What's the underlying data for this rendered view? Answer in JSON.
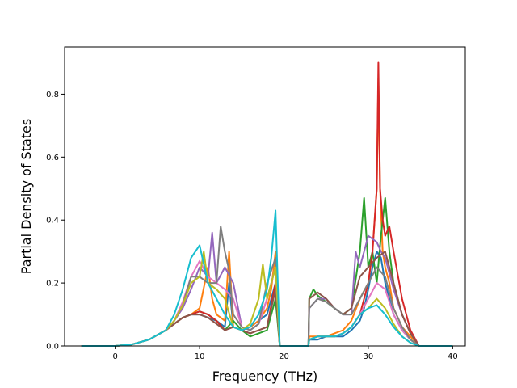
{
  "chart_data": {
    "type": "line",
    "title": "",
    "xlabel": "Frequency (THz)",
    "ylabel": "Partial Density of States",
    "xlim": [
      -6,
      41.5
    ],
    "ylim": [
      0,
      0.95
    ],
    "xticks": [
      0,
      10,
      20,
      30,
      40
    ],
    "yticks": [
      0.0,
      0.2,
      0.4,
      0.6,
      0.8
    ],
    "xtick_labels": [
      "0",
      "10",
      "20",
      "30",
      "40"
    ],
    "ytick_labels": [
      "0.0",
      "0.2",
      "0.4",
      "0.6",
      "0.8"
    ],
    "grid": false,
    "legend": "none",
    "series": [
      {
        "color": "#1f77b4",
        "x": [
          -4,
          0,
          2,
          4,
          6,
          7,
          8,
          9,
          10,
          11,
          12,
          13,
          13.5,
          14,
          15,
          16,
          17,
          18,
          18.5,
          19,
          19.5,
          22.9,
          23,
          24,
          25,
          26,
          27,
          28,
          29,
          29.5,
          30,
          30.5,
          31,
          31.5,
          32,
          32.5,
          33,
          34,
          35,
          36,
          40
        ],
        "y": [
          0,
          0,
          0.005,
          0.02,
          0.05,
          0.07,
          0.09,
          0.1,
          0.1,
          0.09,
          0.08,
          0.06,
          0.2,
          0.06,
          0.05,
          0.06,
          0.08,
          0.1,
          0.15,
          0.2,
          0,
          0,
          0.02,
          0.02,
          0.03,
          0.03,
          0.03,
          0.05,
          0.08,
          0.12,
          0.18,
          0.25,
          0.3,
          0.28,
          0.2,
          0.15,
          0.1,
          0.05,
          0.02,
          0,
          0
        ]
      },
      {
        "color": "#ff7f0e",
        "x": [
          -4,
          0,
          2,
          4,
          6,
          7,
          8,
          9,
          10,
          11,
          11.5,
          12,
          13,
          13.5,
          14,
          15,
          16,
          17,
          18,
          18.5,
          19,
          19.5,
          22.9,
          23,
          24,
          25,
          26,
          27,
          28,
          29,
          30,
          30.5,
          31,
          31.2,
          31.4,
          31.7,
          32,
          32.5,
          33,
          34,
          35,
          36,
          40
        ],
        "y": [
          0,
          0,
          0.005,
          0.02,
          0.05,
          0.07,
          0.09,
          0.1,
          0.12,
          0.25,
          0.15,
          0.1,
          0.08,
          0.3,
          0.06,
          0.05,
          0.06,
          0.08,
          0.12,
          0.18,
          0.3,
          0,
          0,
          0.03,
          0.03,
          0.03,
          0.04,
          0.05,
          0.08,
          0.15,
          0.2,
          0.3,
          0.5,
          0.85,
          0.5,
          0.3,
          0.25,
          0.2,
          0.12,
          0.06,
          0.03,
          0,
          0
        ]
      },
      {
        "color": "#2ca02c",
        "x": [
          -4,
          0,
          2,
          4,
          6,
          7,
          8,
          9,
          10,
          11,
          12,
          13,
          14,
          15,
          16,
          17,
          18,
          19,
          19.5,
          22.9,
          23,
          23.5,
          24,
          25,
          26,
          27,
          28,
          29,
          29.5,
          30,
          30.5,
          31,
          31.5,
          32,
          32.5,
          33,
          34,
          35,
          36,
          40
        ],
        "y": [
          0,
          0,
          0.005,
          0.02,
          0.05,
          0.07,
          0.09,
          0.1,
          0.11,
          0.1,
          0.08,
          0.05,
          0.08,
          0.05,
          0.03,
          0.04,
          0.05,
          0.15,
          0,
          0,
          0.15,
          0.18,
          0.16,
          0.14,
          0.12,
          0.1,
          0.12,
          0.3,
          0.47,
          0.25,
          0.3,
          0.2,
          0.35,
          0.47,
          0.3,
          0.2,
          0.1,
          0.04,
          0,
          0
        ]
      },
      {
        "color": "#d62728",
        "x": [
          -4,
          0,
          2,
          4,
          6,
          7,
          8,
          9,
          10,
          11,
          12,
          13,
          14,
          15,
          16,
          17,
          18,
          19,
          19.5,
          22.9,
          23,
          24,
          25,
          26,
          27,
          28,
          29,
          30,
          30.5,
          31,
          31.2,
          31.4,
          31.7,
          32,
          32.5,
          33,
          34,
          35,
          36,
          40
        ],
        "y": [
          0,
          0,
          0.005,
          0.02,
          0.05,
          0.07,
          0.09,
          0.1,
          0.11,
          0.1,
          0.08,
          0.05,
          0.06,
          0.05,
          0.04,
          0.05,
          0.06,
          0.2,
          0,
          0,
          0.02,
          0.03,
          0.03,
          0.03,
          0.04,
          0.06,
          0.1,
          0.2,
          0.3,
          0.5,
          0.9,
          0.5,
          0.4,
          0.35,
          0.38,
          0.3,
          0.15,
          0.05,
          0,
          0
        ]
      },
      {
        "color": "#9467bd",
        "x": [
          -4,
          0,
          2,
          4,
          6,
          7,
          8,
          9,
          10,
          11,
          11.5,
          12,
          13,
          14,
          15,
          16,
          17,
          18,
          19,
          19.5,
          22.9,
          23,
          24,
          25,
          26,
          27,
          28,
          28.5,
          29,
          30,
          31,
          31.5,
          32,
          33,
          34,
          35,
          36,
          40
        ],
        "y": [
          0,
          0,
          0.005,
          0.02,
          0.05,
          0.08,
          0.12,
          0.18,
          0.25,
          0.22,
          0.36,
          0.2,
          0.25,
          0.2,
          0.06,
          0.05,
          0.07,
          0.15,
          0.25,
          0,
          0,
          0.12,
          0.15,
          0.15,
          0.12,
          0.1,
          0.1,
          0.3,
          0.25,
          0.35,
          0.33,
          0.3,
          0.28,
          0.18,
          0.1,
          0.04,
          0,
          0
        ]
      },
      {
        "color": "#8c564b",
        "x": [
          -4,
          0,
          2,
          4,
          6,
          7,
          8,
          9,
          10,
          11,
          12,
          13,
          14,
          15,
          16,
          17,
          18,
          19,
          19.5,
          22.9,
          23,
          24,
          25,
          26,
          27,
          28,
          29,
          30,
          31,
          32,
          33,
          34,
          35,
          36,
          40
        ],
        "y": [
          0,
          0,
          0.005,
          0.02,
          0.05,
          0.07,
          0.09,
          0.1,
          0.1,
          0.09,
          0.07,
          0.05,
          0.06,
          0.05,
          0.04,
          0.05,
          0.06,
          0.18,
          0,
          0,
          0.15,
          0.17,
          0.15,
          0.12,
          0.1,
          0.12,
          0.22,
          0.25,
          0.28,
          0.3,
          0.2,
          0.1,
          0.04,
          0,
          0
        ]
      },
      {
        "color": "#e377c2",
        "x": [
          -4,
          0,
          2,
          4,
          6,
          7,
          8,
          9,
          10,
          11,
          12,
          13,
          14,
          15,
          16,
          17,
          18,
          19,
          19.5,
          22.9,
          23,
          24,
          25,
          26,
          27,
          28,
          29,
          30,
          31,
          32,
          33,
          34,
          35,
          36,
          40
        ],
        "y": [
          0,
          0,
          0.005,
          0.02,
          0.05,
          0.08,
          0.14,
          0.22,
          0.27,
          0.22,
          0.2,
          0.18,
          0.15,
          0.06,
          0.05,
          0.07,
          0.15,
          0.25,
          0,
          0,
          0.02,
          0.03,
          0.03,
          0.03,
          0.04,
          0.06,
          0.1,
          0.15,
          0.2,
          0.18,
          0.1,
          0.05,
          0.02,
          0,
          0
        ]
      },
      {
        "color": "#7f7f7f",
        "x": [
          -4,
          0,
          2,
          4,
          6,
          7,
          8,
          9,
          10,
          11,
          12,
          12.5,
          13,
          13.5,
          14,
          15,
          16,
          17,
          18,
          19,
          19.5,
          22.9,
          23,
          24,
          25,
          26,
          27,
          28,
          29,
          30,
          31,
          32,
          33,
          34,
          35,
          36,
          40
        ],
        "y": [
          0,
          0,
          0.005,
          0.02,
          0.05,
          0.08,
          0.13,
          0.22,
          0.22,
          0.2,
          0.2,
          0.38,
          0.3,
          0.24,
          0.1,
          0.06,
          0.05,
          0.07,
          0.2,
          0.28,
          0,
          0,
          0.12,
          0.15,
          0.14,
          0.12,
          0.1,
          0.1,
          0.15,
          0.2,
          0.25,
          0.22,
          0.12,
          0.06,
          0.02,
          0,
          0
        ]
      },
      {
        "color": "#bcbd22",
        "x": [
          -4,
          0,
          2,
          4,
          6,
          7,
          8,
          9,
          10,
          10.5,
          11,
          12,
          13,
          14,
          15,
          16,
          17,
          17.5,
          18,
          19,
          19.5,
          22.9,
          23,
          24,
          25,
          26,
          27,
          28,
          29,
          30,
          31,
          32,
          33,
          34,
          35,
          36,
          40
        ],
        "y": [
          0,
          0,
          0.005,
          0.02,
          0.05,
          0.08,
          0.13,
          0.2,
          0.22,
          0.3,
          0.2,
          0.18,
          0.15,
          0.06,
          0.05,
          0.07,
          0.15,
          0.26,
          0.15,
          0.25,
          0,
          0,
          0.02,
          0.03,
          0.03,
          0.03,
          0.04,
          0.06,
          0.1,
          0.12,
          0.15,
          0.12,
          0.07,
          0.03,
          0.01,
          0,
          0
        ]
      },
      {
        "color": "#17becf",
        "x": [
          -4,
          0,
          2,
          4,
          6,
          7,
          8,
          9,
          10,
          11,
          12,
          13,
          14,
          15,
          16,
          17,
          18,
          18.5,
          19,
          19.5,
          22.9,
          23,
          24,
          25,
          26,
          27,
          28,
          29,
          30,
          31,
          32,
          33,
          34,
          35,
          36,
          40
        ],
        "y": [
          0,
          0,
          0.005,
          0.02,
          0.05,
          0.1,
          0.18,
          0.28,
          0.32,
          0.2,
          0.15,
          0.1,
          0.06,
          0.05,
          0.06,
          0.1,
          0.18,
          0.28,
          0.43,
          0,
          0,
          0.02,
          0.03,
          0.03,
          0.03,
          0.04,
          0.06,
          0.1,
          0.12,
          0.13,
          0.1,
          0.06,
          0.03,
          0.01,
          0,
          0
        ]
      }
    ]
  }
}
